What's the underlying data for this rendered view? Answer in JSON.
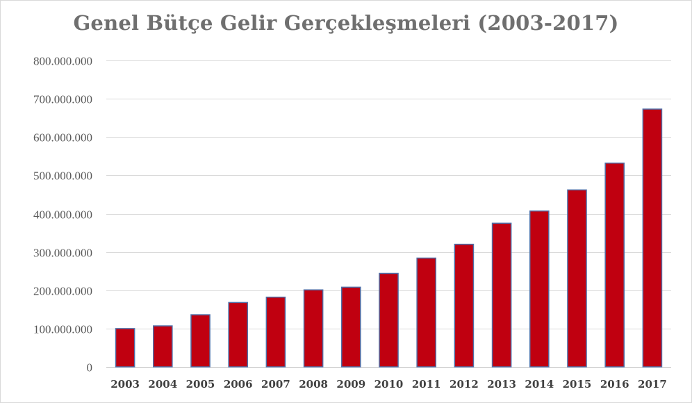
{
  "chart_data": {
    "type": "bar",
    "title": "Genel Bütçe Gelir Gerçekleşmeleri (2003-2017)",
    "xlabel": "",
    "ylabel": "",
    "categories": [
      "2003",
      "2004",
      "2005",
      "2006",
      "2007",
      "2008",
      "2009",
      "2010",
      "2011",
      "2012",
      "2013",
      "2014",
      "2015",
      "2016",
      "2017"
    ],
    "values": [
      100000000,
      107000000,
      136000000,
      168000000,
      182000000,
      201000000,
      208000000,
      244000000,
      284000000,
      320000000,
      375000000,
      407000000,
      462000000,
      532000000,
      673000000
    ],
    "ylim": [
      0,
      800000000
    ],
    "yticks": [
      0,
      100000000,
      200000000,
      300000000,
      400000000,
      500000000,
      600000000,
      700000000,
      800000000
    ],
    "ytick_labels": [
      "0",
      "100.000.000",
      "200.000.000",
      "300.000.000",
      "400.000.000",
      "500.000.000",
      "600.000.000",
      "700.000.000",
      "800.000.000"
    ],
    "grid": true,
    "legend": "none",
    "colors": {
      "bar_fill": "#c00010",
      "bar_border": "#4f6fa8",
      "gridline": "#d9d9d9",
      "title": "#6f6f6f"
    }
  }
}
